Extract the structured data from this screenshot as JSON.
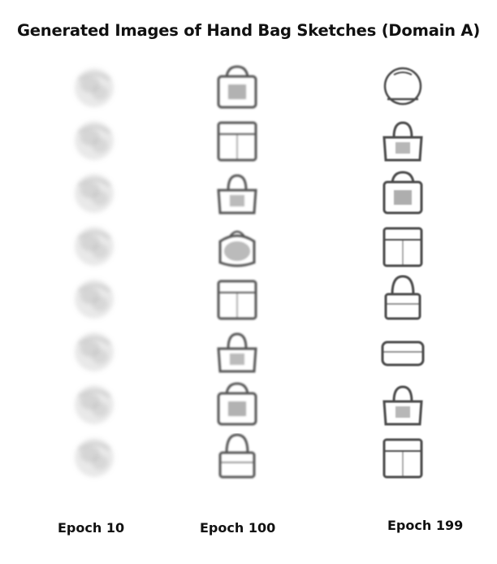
{
  "figure": {
    "title": "Generated Images of  Hand Bag Sketches (Domain A)",
    "columns": [
      {
        "label": "Epoch  10",
        "blur": 2.6,
        "ink": "#9a9a9a",
        "tiles": [
          "blob",
          "blob",
          "blob",
          "blob",
          "blob",
          "blob",
          "blob",
          "blob"
        ]
      },
      {
        "label": "Epoch  100",
        "blur": 1.0,
        "ink": "#555555",
        "tiles": [
          "tote",
          "box",
          "handbag",
          "rounded",
          "box",
          "handbag",
          "tote",
          "handle"
        ]
      },
      {
        "label": "Epoch  199",
        "blur": 0.7,
        "ink": "#4a4a4a",
        "tiles": [
          "round",
          "handbag",
          "tote",
          "box",
          "handle",
          "clutch",
          "handbag",
          "box"
        ]
      }
    ]
  }
}
